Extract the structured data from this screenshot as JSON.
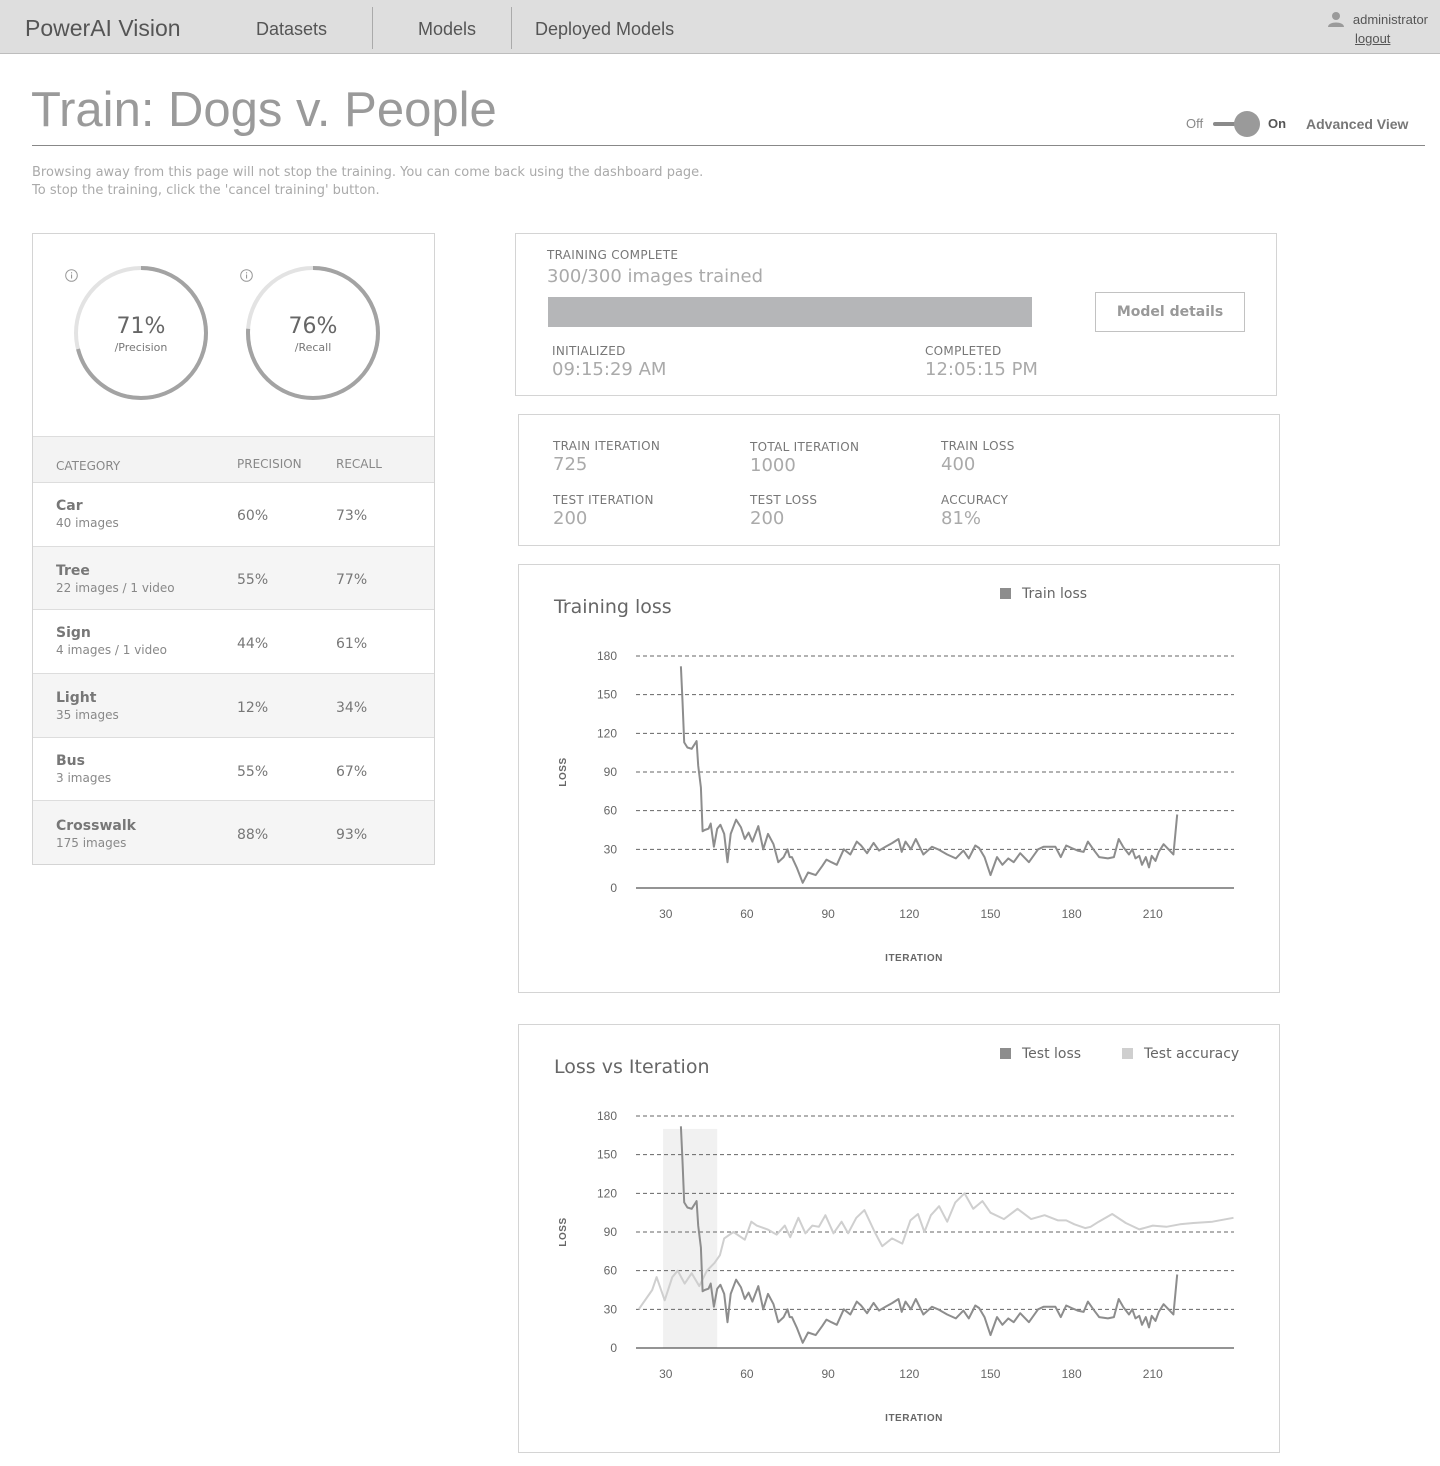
{
  "header": {
    "brand": "PowerAI Vision",
    "nav": [
      {
        "label": "Datasets"
      },
      {
        "label": "Models"
      },
      {
        "label": "Deployed Models"
      }
    ],
    "user": "administrator",
    "logout": "logout"
  },
  "page": {
    "title": "Train: Dogs v. People",
    "toggle_off": "Off",
    "toggle_on": "On",
    "toggle_state": "on",
    "advanced_view": "Advanced View",
    "notice_line1": "Browsing away from this page will not stop the training. You can come back using the dashboard page.",
    "notice_line2": "To stop the training, click the 'cancel training' button."
  },
  "metrics": {
    "precision": {
      "value": 0.71,
      "text": "71%",
      "label": "/Precision"
    },
    "recall": {
      "value": 0.76,
      "text": "76%",
      "label": "/Recall"
    }
  },
  "table": {
    "headers": {
      "category": "CATEGORY",
      "precision": "PRECISION",
      "recall": "RECALL"
    },
    "rows": [
      {
        "name": "Car",
        "sub": "40 images",
        "precision": "60%",
        "recall": "73%"
      },
      {
        "name": "Tree",
        "sub": "22 images / 1 video",
        "precision": "55%",
        "recall": "77%"
      },
      {
        "name": "Sign",
        "sub": "4 images / 1 video",
        "precision": "44%",
        "recall": "61%"
      },
      {
        "name": "Light",
        "sub": "35 images",
        "precision": "12%",
        "recall": "34%"
      },
      {
        "name": "Bus",
        "sub": "3 images",
        "precision": "55%",
        "recall": "67%"
      },
      {
        "name": "Crosswalk",
        "sub": "175 images",
        "precision": "88%",
        "recall": "93%"
      }
    ]
  },
  "status": {
    "heading": "TRAINING COMPLETE",
    "images_trained": "300/300 images trained",
    "progress": 1.0,
    "initialized_label": "INITIALIZED",
    "initialized_time": "09:15:29 AM",
    "completed_label": "COMPLETED",
    "completed_time": "12:05:15 PM",
    "model_details": "Model details"
  },
  "stats": [
    {
      "label": "TRAIN ITERATION",
      "value": "725"
    },
    {
      "label": "TOTAL ITERATION",
      "value": "1000"
    },
    {
      "label": "TRAIN LOSS",
      "value": "400"
    },
    {
      "label": "TEST ITERATION",
      "value": "200"
    },
    {
      "label": "TEST LOSS",
      "value": "200"
    },
    {
      "label": "ACCURACY",
      "value": "81%"
    }
  ],
  "chart_data": [
    {
      "type": "line",
      "title": "Training loss",
      "xlabel": "ITERATION",
      "ylabel": "LOSS",
      "xticks": [
        30,
        60,
        90,
        120,
        150,
        180,
        210
      ],
      "yticks": [
        0,
        30,
        60,
        90,
        120,
        150,
        180
      ],
      "xlim": [
        19,
        240
      ],
      "ylim": [
        0,
        180
      ],
      "grid": "dashed horizontal",
      "legend": "top",
      "colors": {
        "train_loss": "#8d8d8d"
      },
      "series": [
        {
          "name": "Train loss",
          "x": [
            35.6,
            36.2,
            36.8,
            38.0,
            39.6,
            40.8,
            41.4,
            42.0,
            43.0,
            43.6,
            44.4,
            45.8,
            46.6,
            47.8,
            49.0,
            50.2,
            51.6,
            52.8,
            54.0,
            56.0,
            57.8,
            59.2,
            60.6,
            62.0,
            64.2,
            66.0,
            67.8,
            69.8,
            71.6,
            73.6,
            75.0,
            75.8,
            76.6,
            78.4,
            80.6,
            82.6,
            85.4,
            87.8,
            89.4,
            91.2,
            93.2,
            95.8,
            98.2,
            100.6,
            102.2,
            104.4,
            106.8,
            108.8,
            111.2,
            113.8,
            116.0,
            117.2,
            118.6,
            120.6,
            122.4,
            125.2,
            128.4,
            130.6,
            134.0,
            137.2,
            140.0,
            142.0,
            144.4,
            145.8,
            147.8,
            150.0,
            152.4,
            154.4,
            156.6,
            158.6,
            161.0,
            164.2,
            167.6,
            169.6,
            171.8,
            174.0,
            176.0,
            178.0,
            180.0,
            182.2,
            184.4,
            186.0,
            188.0,
            190.2,
            193.4,
            195.6,
            197.4,
            199.0,
            201.2,
            202.4,
            203.6,
            205.0,
            206.0,
            207.4,
            208.6,
            209.6,
            211.0,
            212.2,
            214.0,
            215.8,
            217.6,
            219.0
          ],
          "y": [
            172,
            145,
            113,
            109,
            108,
            112,
            114,
            95,
            78,
            44,
            45,
            46,
            50,
            32,
            46,
            49,
            42,
            20,
            42,
            53,
            47,
            38,
            43,
            36,
            48,
            30,
            42,
            34,
            20,
            24,
            30,
            24,
            24,
            16,
            4,
            12,
            10,
            17,
            22,
            20,
            18,
            30,
            26,
            36,
            33,
            27,
            35,
            29,
            32,
            35,
            38,
            28,
            36,
            30,
            38,
            26,
            32,
            30,
            26,
            23,
            29,
            23,
            33,
            31,
            24,
            10,
            24,
            18,
            23,
            20,
            27,
            20,
            30,
            32,
            32,
            32,
            24,
            33,
            31,
            29,
            28,
            36,
            30,
            24,
            23,
            24,
            38,
            32,
            26,
            30,
            23,
            25,
            18,
            24,
            16,
            25,
            21,
            28,
            34,
            30,
            26,
            57
          ]
        }
      ]
    },
    {
      "type": "line",
      "title": "Loss vs Iteration",
      "xlabel": "ITERATION",
      "ylabel": "LOSS",
      "xticks": [
        30,
        60,
        90,
        120,
        150,
        180,
        210
      ],
      "yticks": [
        0,
        30,
        60,
        90,
        120,
        150,
        180
      ],
      "xlim": [
        19,
        240
      ],
      "ylim": [
        0,
        180
      ],
      "grid": "dashed horizontal",
      "legend": "top-right",
      "shaded_region": [
        29,
        49
      ],
      "colors": {
        "test_loss": "#8d8d8d",
        "test_accuracy": "#cfcfcf"
      },
      "series": [
        {
          "name": "Test loss",
          "x": [
            35.6,
            36.2,
            36.8,
            38.0,
            39.6,
            40.8,
            41.4,
            42.0,
            43.0,
            43.6,
            44.4,
            45.8,
            46.6,
            47.8,
            49.0,
            50.2,
            51.6,
            52.8,
            54.0,
            56.0,
            57.8,
            59.2,
            60.6,
            62.0,
            64.2,
            66.0,
            67.8,
            69.8,
            71.6,
            73.6,
            75.0,
            75.8,
            76.6,
            78.4,
            80.6,
            82.6,
            85.4,
            87.8,
            89.4,
            91.2,
            93.2,
            95.8,
            98.2,
            100.6,
            102.2,
            104.4,
            106.8,
            108.8,
            111.2,
            113.8,
            116.0,
            117.2,
            118.6,
            120.6,
            122.4,
            125.2,
            128.4,
            130.6,
            134.0,
            137.2,
            140.0,
            142.0,
            144.4,
            145.8,
            147.8,
            150.0,
            152.4,
            154.4,
            156.6,
            158.6,
            161.0,
            164.2,
            167.6,
            169.6,
            171.8,
            174.0,
            176.0,
            178.0,
            180.0,
            182.2,
            184.4,
            186.0,
            188.0,
            190.2,
            193.4,
            195.6,
            197.4,
            199.0,
            201.2,
            202.4,
            203.6,
            205.0,
            206.0,
            207.4,
            208.6,
            209.6,
            211.0,
            212.2,
            214.0,
            215.8,
            217.6,
            219.0
          ],
          "y": [
            172,
            145,
            113,
            109,
            108,
            112,
            114,
            95,
            78,
            44,
            45,
            46,
            50,
            32,
            46,
            49,
            42,
            20,
            42,
            53,
            47,
            38,
            43,
            36,
            48,
            30,
            42,
            34,
            20,
            24,
            30,
            24,
            24,
            16,
            4,
            12,
            10,
            17,
            22,
            20,
            18,
            30,
            26,
            36,
            33,
            27,
            35,
            29,
            32,
            35,
            38,
            28,
            36,
            30,
            38,
            26,
            32,
            30,
            26,
            23,
            29,
            23,
            33,
            31,
            24,
            10,
            24,
            18,
            23,
            20,
            27,
            20,
            30,
            32,
            32,
            32,
            24,
            33,
            31,
            29,
            28,
            36,
            30,
            24,
            23,
            24,
            38,
            32,
            26,
            30,
            23,
            25,
            18,
            24,
            16,
            25,
            21,
            28,
            34,
            30,
            26,
            57
          ]
        },
        {
          "name": "Test accuracy",
          "x": [
            20.0,
            25.0,
            26.6,
            29.6,
            32.4,
            34.4,
            37.0,
            39.6,
            42.4,
            45.2,
            48.0,
            50.0,
            51.6,
            55.0,
            59.2,
            61.6,
            63.6,
            67.6,
            71.0,
            74.0,
            76.0,
            79.0,
            81.6,
            84.2,
            86.6,
            89.0,
            92.0,
            95.0,
            97.4,
            100.4,
            103.4,
            107.2,
            110.0,
            113.6,
            117.4,
            120.4,
            123.2,
            125.6,
            128.0,
            131.0,
            134.0,
            137.0,
            140.4,
            143.6,
            147.0,
            150.0,
            155.0,
            160.0,
            165.0,
            170.0,
            175.0,
            178.0,
            181.0,
            185.0,
            187.0,
            190.0,
            195.0,
            200.0,
            205.0,
            210.0,
            215.0,
            220.0,
            225.0,
            232.0,
            239.8
          ],
          "y": [
            30,
            45,
            55,
            37,
            55,
            60,
            50,
            58,
            48,
            60,
            66,
            72,
            85,
            90,
            84,
            98,
            95,
            92,
            88,
            95,
            86,
            101,
            89,
            95,
            94,
            103,
            89,
            98,
            89,
            101,
            107,
            90,
            79,
            85,
            81,
            99,
            104,
            90,
            103,
            110,
            98,
            113,
            120,
            108,
            114,
            105,
            100,
            108,
            100,
            103,
            99,
            99,
            96,
            93,
            94,
            98,
            104,
            97,
            92,
            95,
            94,
            96,
            97,
            98,
            101
          ]
        }
      ]
    }
  ]
}
